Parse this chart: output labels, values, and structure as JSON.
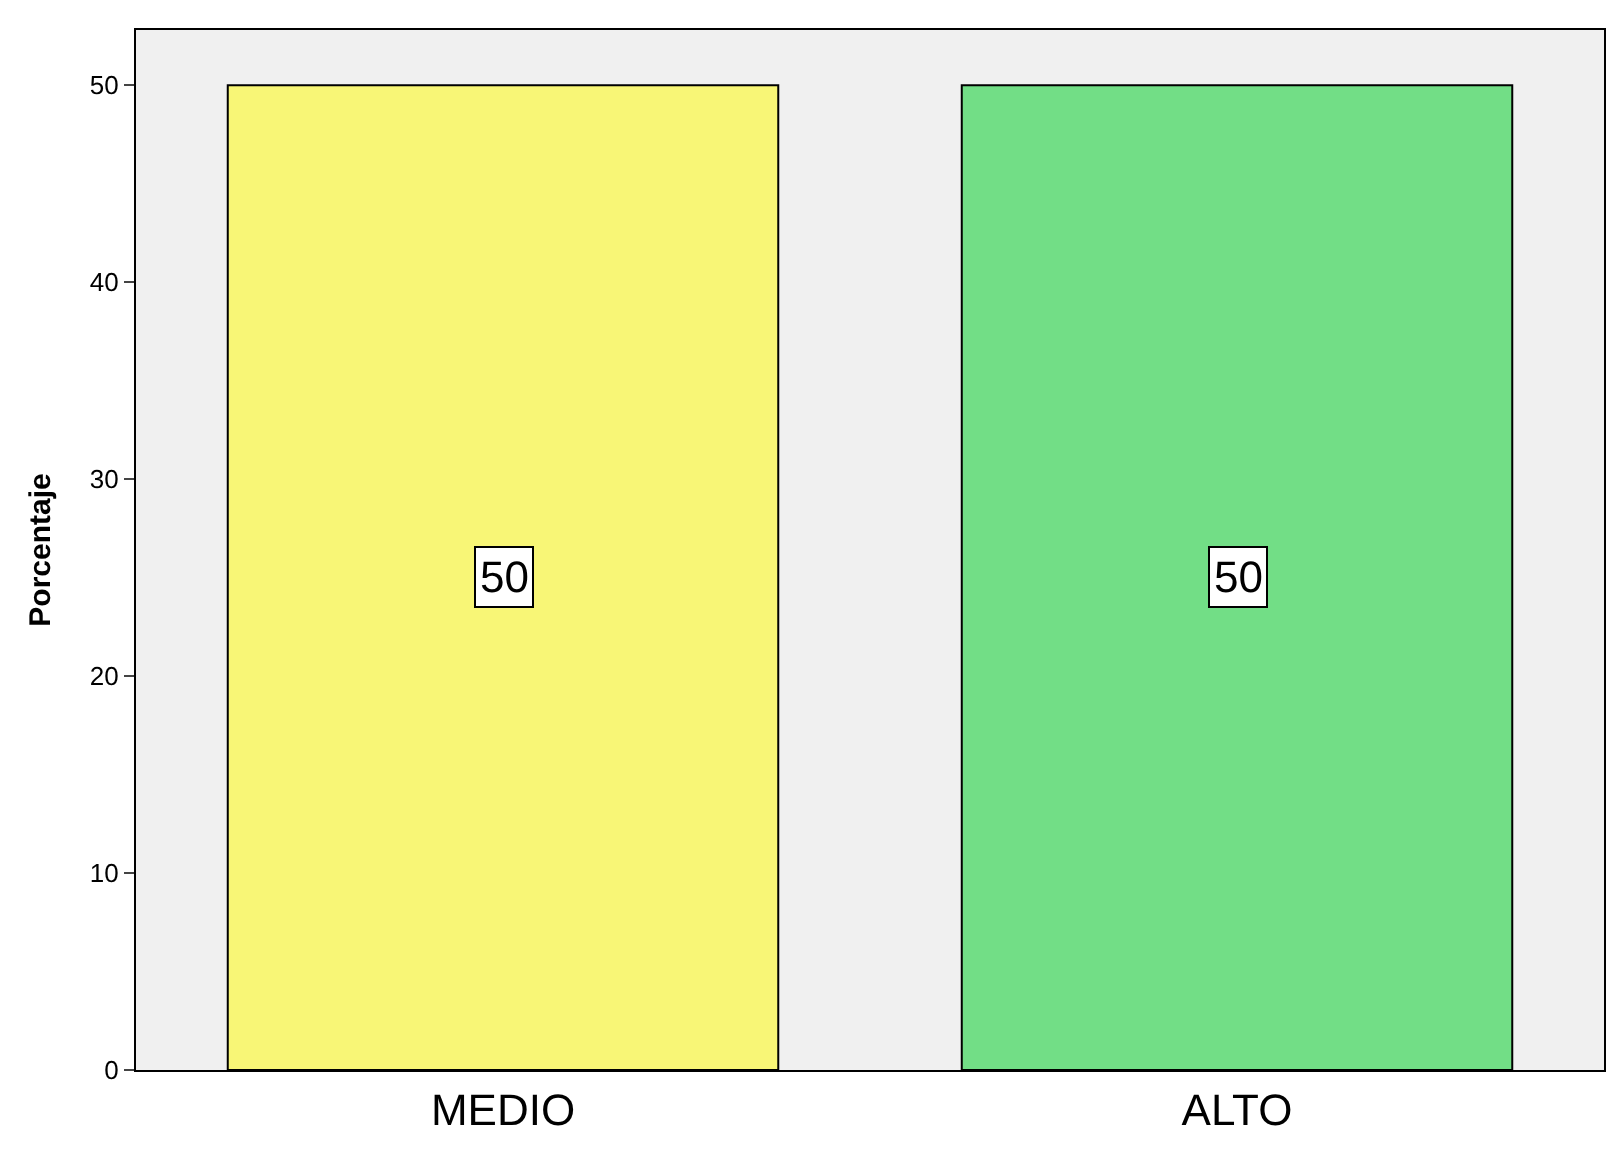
{
  "chart_data": {
    "type": "bar",
    "ylabel": "Porcentaje",
    "categories": [
      "MEDIO",
      "ALTO"
    ],
    "values": [
      50,
      50
    ],
    "colors": [
      "#f8f676",
      "#72de86"
    ],
    "ylim": [
      0,
      52.8
    ],
    "yticks": [
      0,
      10,
      20,
      30,
      40,
      50
    ],
    "data_labels": true,
    "grid": false,
    "legend": false
  }
}
